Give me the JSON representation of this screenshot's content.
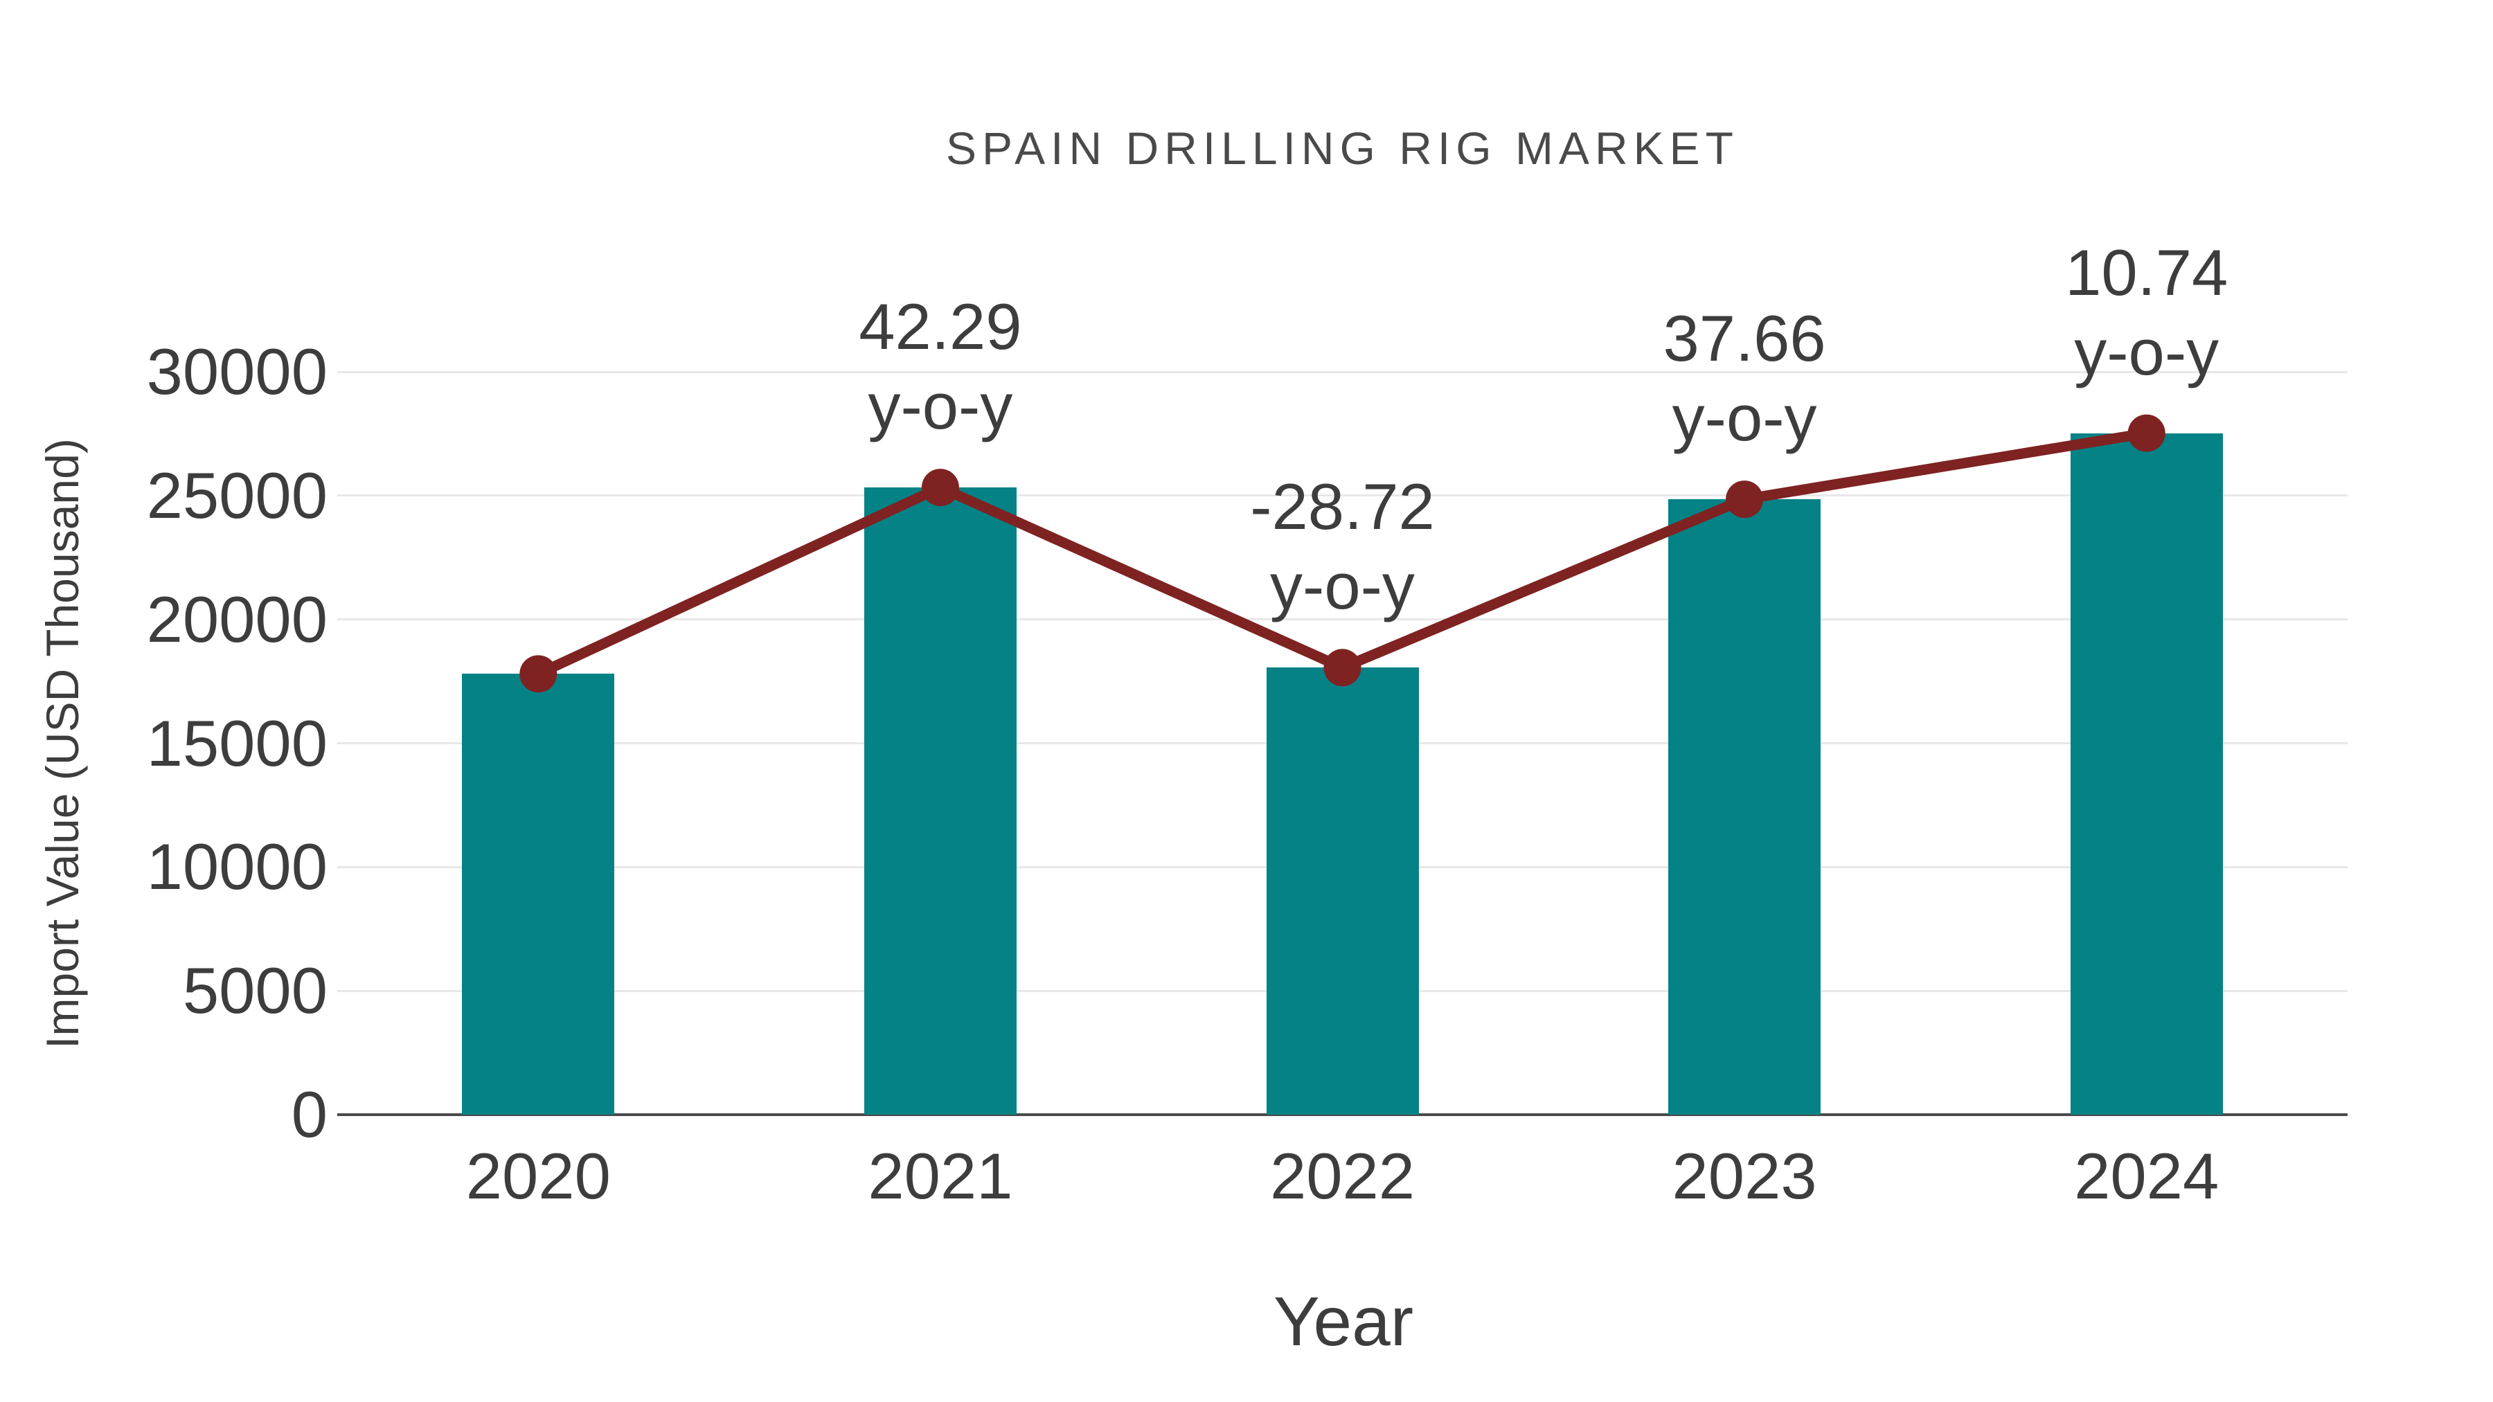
{
  "chart_data": {
    "type": "bar",
    "subtype": "bar-with-line-overlay",
    "title": "SPAIN DRILLING RIG MARKET",
    "xlabel": "Year",
    "ylabel": "Import Value (USD Thousand)",
    "categories": [
      "2020",
      "2021",
      "2022",
      "2023",
      "2024"
    ],
    "series": [
      {
        "name": "Import Value",
        "type": "bar",
        "color": "#058286",
        "values": [
          17800,
          25328,
          18054,
          24852,
          27522
        ]
      },
      {
        "name": "Trend",
        "type": "line",
        "color": "#7f2222",
        "marker": "circle",
        "values": [
          17800,
          25328,
          18054,
          24852,
          27522
        ]
      }
    ],
    "yoy_labels": [
      null,
      "42.29",
      "-28.72",
      "37.66",
      "10.74"
    ],
    "yoy_suffix": "y-o-y",
    "yticks": [
      0,
      5000,
      10000,
      15000,
      20000,
      25000,
      30000
    ],
    "ylim": [
      0,
      30000
    ],
    "grid": true,
    "legend": false,
    "colors": {
      "bar": "#058286",
      "line": "#7f2222",
      "text": "#3d3d3d",
      "title_text": "#4a4a4a",
      "gridline": "#e8e8e8",
      "axis": "#4a4a4a",
      "background": "#ffffff"
    }
  }
}
